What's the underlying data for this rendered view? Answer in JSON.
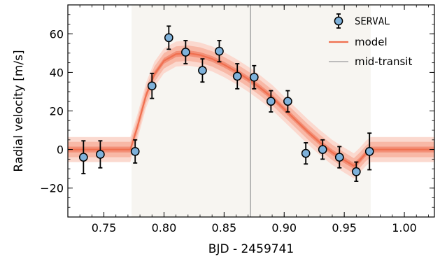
{
  "chart_data": {
    "type": "scatter",
    "xlabel": "BJD - 2459741",
    "ylabel": "Radial velocity [m/s]",
    "xlim": [
      0.72,
      1.025
    ],
    "ylim": [
      -35,
      75
    ],
    "x_ticks": [
      0.75,
      0.8,
      0.85,
      0.9,
      0.95,
      1.0
    ],
    "x_tick_labels": [
      "0.75",
      "0.80",
      "0.85",
      "0.90",
      "0.95",
      "1.00"
    ],
    "y_ticks": [
      -20,
      0,
      20,
      40,
      60
    ],
    "y_tick_labels": [
      "−20",
      "0",
      "20",
      "40",
      "60"
    ],
    "observed_window": [
      0.773,
      0.972
    ],
    "mid_transit": 0.872,
    "legend": {
      "position": "top-right",
      "entries": [
        "SERVAL",
        "model",
        "mid-transit"
      ]
    },
    "colors": {
      "points": "#7eb1da",
      "model": "#f07050",
      "band_inner": "#f39078",
      "band_mid": "#f8b8a6",
      "band_outer": "#fbd9cf",
      "mid_transit_line": "#aaaaaa",
      "window_shade": "#f7f5f1"
    },
    "series": [
      {
        "name": "SERVAL",
        "points": [
          {
            "x": 0.733,
            "y": -4,
            "err": 8.5
          },
          {
            "x": 0.747,
            "y": -2.5,
            "err": 7
          },
          {
            "x": 0.776,
            "y": -1,
            "err": 6
          },
          {
            "x": 0.79,
            "y": 33,
            "err": 6.5
          },
          {
            "x": 0.804,
            "y": 58,
            "err": 6
          },
          {
            "x": 0.818,
            "y": 50.5,
            "err": 6
          },
          {
            "x": 0.832,
            "y": 41,
            "err": 6
          },
          {
            "x": 0.846,
            "y": 51,
            "err": 5.5
          },
          {
            "x": 0.861,
            "y": 38,
            "err": 6.5
          },
          {
            "x": 0.875,
            "y": 37.5,
            "err": 6
          },
          {
            "x": 0.889,
            "y": 25,
            "err": 5.5
          },
          {
            "x": 0.903,
            "y": 25,
            "err": 5.5
          },
          {
            "x": 0.918,
            "y": -2,
            "err": 5.5
          },
          {
            "x": 0.932,
            "y": 0,
            "err": 5
          },
          {
            "x": 0.946,
            "y": -4,
            "err": 5.5
          },
          {
            "x": 0.96,
            "y": -11.5,
            "err": 5
          },
          {
            "x": 0.971,
            "y": -1,
            "err": 9.5
          }
        ]
      },
      {
        "name": "model",
        "x": [
          0.72,
          0.772,
          0.778,
          0.785,
          0.792,
          0.8,
          0.81,
          0.82,
          0.83,
          0.84,
          0.85,
          0.86,
          0.87,
          0.88,
          0.89,
          0.9,
          0.91,
          0.92,
          0.93,
          0.94,
          0.95,
          0.958,
          0.963,
          0.968,
          0.972,
          1.025
        ],
        "y": [
          0,
          0,
          12,
          28,
          39,
          46,
          49.5,
          50,
          49,
          47,
          44,
          40.5,
          36.5,
          32,
          27,
          21,
          15,
          9,
          3.5,
          -1.5,
          -5.5,
          -8.5,
          -5.5,
          -2,
          0,
          0
        ],
        "band_half_widths": [
          1.5,
          4,
          6.5
        ]
      }
    ]
  }
}
